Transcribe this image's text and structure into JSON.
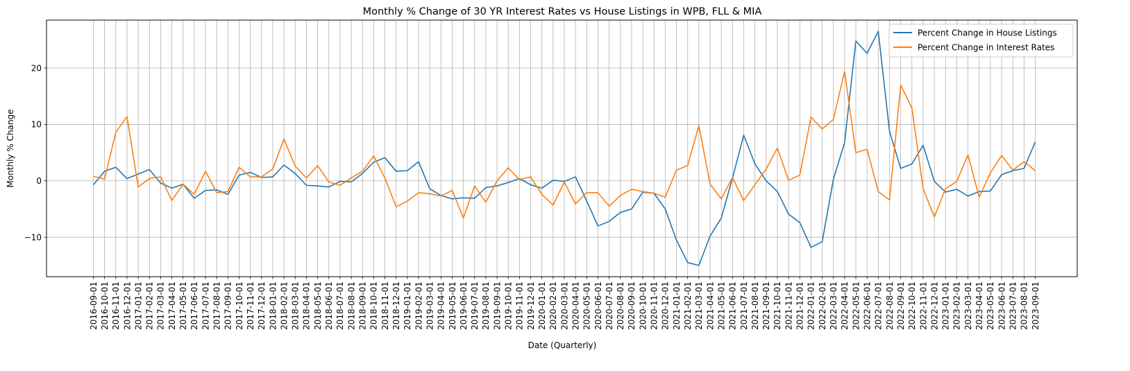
{
  "chart_data": {
    "type": "line",
    "title": "Monthly % Change of 30 YR Interest Rates vs House Listings in WPB, FLL & MIA",
    "xlabel": "Date (Quarterly)",
    "ylabel": "Monthly % Change",
    "ylim": [
      -17,
      28.5
    ],
    "yticks": [
      -10,
      0,
      10,
      20
    ],
    "grid": true,
    "legend_position": "top-right",
    "categories": [
      "2016-09-01",
      "2016-10-01",
      "2016-11-01",
      "2016-12-01",
      "2017-01-01",
      "2017-02-01",
      "2017-03-01",
      "2017-04-01",
      "2017-05-01",
      "2017-06-01",
      "2017-07-01",
      "2017-08-01",
      "2017-09-01",
      "2017-10-01",
      "2017-11-01",
      "2017-12-01",
      "2018-01-01",
      "2018-02-01",
      "2018-03-01",
      "2018-04-01",
      "2018-05-01",
      "2018-06-01",
      "2018-07-01",
      "2018-08-01",
      "2018-09-01",
      "2018-10-01",
      "2018-11-01",
      "2018-12-01",
      "2019-01-01",
      "2019-02-01",
      "2019-03-01",
      "2019-04-01",
      "2019-05-01",
      "2019-06-01",
      "2019-07-01",
      "2019-08-01",
      "2019-09-01",
      "2019-10-01",
      "2019-11-01",
      "2019-12-01",
      "2020-01-01",
      "2020-02-01",
      "2020-03-01",
      "2020-04-01",
      "2020-05-01",
      "2020-06-01",
      "2020-07-01",
      "2020-08-01",
      "2020-09-01",
      "2020-10-01",
      "2020-11-01",
      "2020-12-01",
      "2021-01-01",
      "2021-02-01",
      "2021-03-01",
      "2021-04-01",
      "2021-05-01",
      "2021-06-01",
      "2021-07-01",
      "2021-08-01",
      "2021-09-01",
      "2021-10-01",
      "2021-11-01",
      "2021-12-01",
      "2022-01-01",
      "2022-02-01",
      "2022-03-01",
      "2022-04-01",
      "2022-05-01",
      "2022-06-01",
      "2022-07-01",
      "2022-08-01",
      "2022-09-01",
      "2022-10-01",
      "2022-11-01",
      "2022-12-01",
      "2023-01-01",
      "2023-02-01",
      "2023-03-01",
      "2023-04-01",
      "2023-05-01",
      "2023-06-01",
      "2023-07-01",
      "2023-08-01",
      "2023-09-01"
    ],
    "series": [
      {
        "name": "Percent Change in House Listings",
        "color": "#1f77b4",
        "values": [
          -0.7,
          1.7,
          2.4,
          0.4,
          1.2,
          2.0,
          -0.4,
          -1.3,
          -0.6,
          -3.1,
          -1.7,
          -1.6,
          -2.4,
          1.0,
          1.5,
          0.6,
          0.7,
          2.8,
          1.3,
          -0.8,
          -0.9,
          -1.1,
          -0.1,
          -0.2,
          1.3,
          3.3,
          4.1,
          1.7,
          1.8,
          3.4,
          -1.4,
          -2.6,
          -3.2,
          -3.0,
          -3.1,
          -1.2,
          -0.9,
          -0.3,
          0.4,
          -0.7,
          -1.3,
          0.1,
          -0.1,
          0.7,
          -3.6,
          -8.0,
          -7.2,
          -5.6,
          -5.0,
          -2.0,
          -2.2,
          -5.0,
          -10.5,
          -14.5,
          -15.0,
          -9.8,
          -6.6,
          0.5,
          8.1,
          3.0,
          0.0,
          -1.9,
          -5.9,
          -7.4,
          -11.8,
          -10.8,
          0.3,
          6.8,
          24.8,
          22.6,
          26.5,
          8.8,
          2.2,
          3.0,
          6.3,
          -0.1,
          -2.0,
          -1.5,
          -2.7,
          -1.9,
          -1.8,
          1.1,
          1.8,
          2.2,
          6.9
        ]
      },
      {
        "name": "Percent Change in Interest Rates",
        "color": "#ff7f0e",
        "values": [
          0.8,
          0.3,
          8.6,
          11.4,
          -1.1,
          0.4,
          0.7,
          -3.5,
          -0.6,
          -2.4,
          1.7,
          -2.1,
          -1.9,
          2.4,
          0.7,
          0.7,
          2.1,
          7.4,
          2.6,
          0.5,
          2.7,
          -0.2,
          -0.8,
          0.5,
          1.7,
          4.4,
          0.5,
          -4.6,
          -3.6,
          -2.1,
          -2.3,
          -2.7,
          -1.7,
          -6.6,
          -0.9,
          -3.8,
          0.0,
          2.3,
          0.2,
          0.7,
          -2.4,
          -4.3,
          -0.2,
          -4.1,
          -2.1,
          -2.1,
          -4.5,
          -2.6,
          -1.5,
          -1.9,
          -2.2,
          -2.9,
          1.9,
          2.7,
          9.8,
          -0.6,
          -3.2,
          0.6,
          -3.5,
          -0.7,
          2.1,
          5.8,
          0.1,
          1.0,
          11.3,
          9.2,
          10.9,
          19.4,
          5.0,
          5.6,
          -1.9,
          -3.4,
          17.0,
          12.9,
          -1.4,
          -6.4,
          -1.4,
          -0.1,
          4.6,
          -2.9,
          1.4,
          4.5,
          1.9,
          3.4,
          1.8
        ]
      }
    ]
  }
}
